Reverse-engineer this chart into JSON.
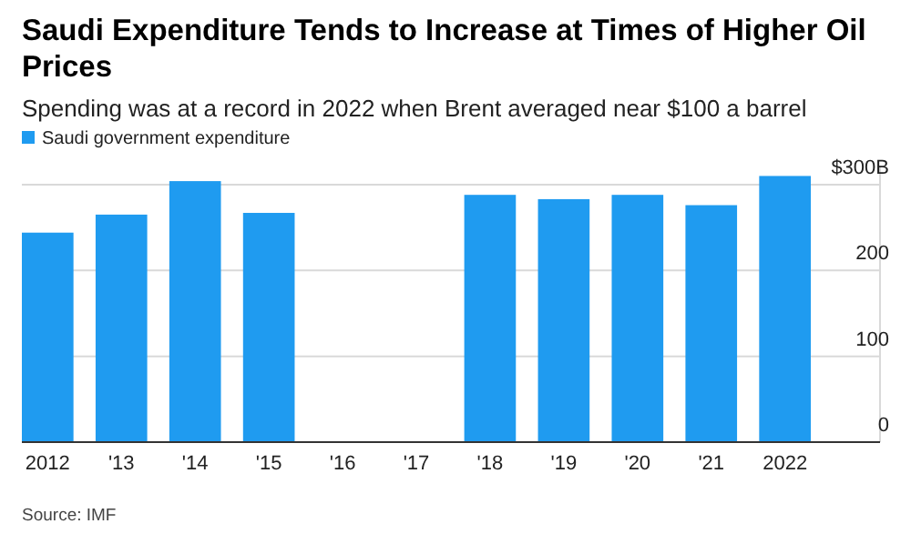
{
  "chart_data": {
    "type": "bar",
    "title": "Saudi Expenditure Tends to Increase at Times of Higher Oil Prices",
    "subtitle": "Spending was at a record in 2022 when Brent averaged near $100 a barrel",
    "categories": [
      "2012",
      "'13",
      "'14",
      "'15",
      "'16",
      "'17",
      "'18",
      "'19",
      "'20",
      "'21",
      "2022"
    ],
    "series": [
      {
        "name": "Saudi government expenditure",
        "color": "#1f9bf0",
        "values": [
          244,
          265,
          304,
          267,
          null,
          null,
          288,
          283,
          288,
          276,
          310
        ]
      }
    ],
    "ylim": [
      0,
      320
    ],
    "yticks": [
      0,
      100,
      200,
      {
        "value": 300,
        "label": "$300B"
      }
    ],
    "grid": "y",
    "legend": "top left",
    "annotations": [
      "Source: IMF"
    ]
  }
}
